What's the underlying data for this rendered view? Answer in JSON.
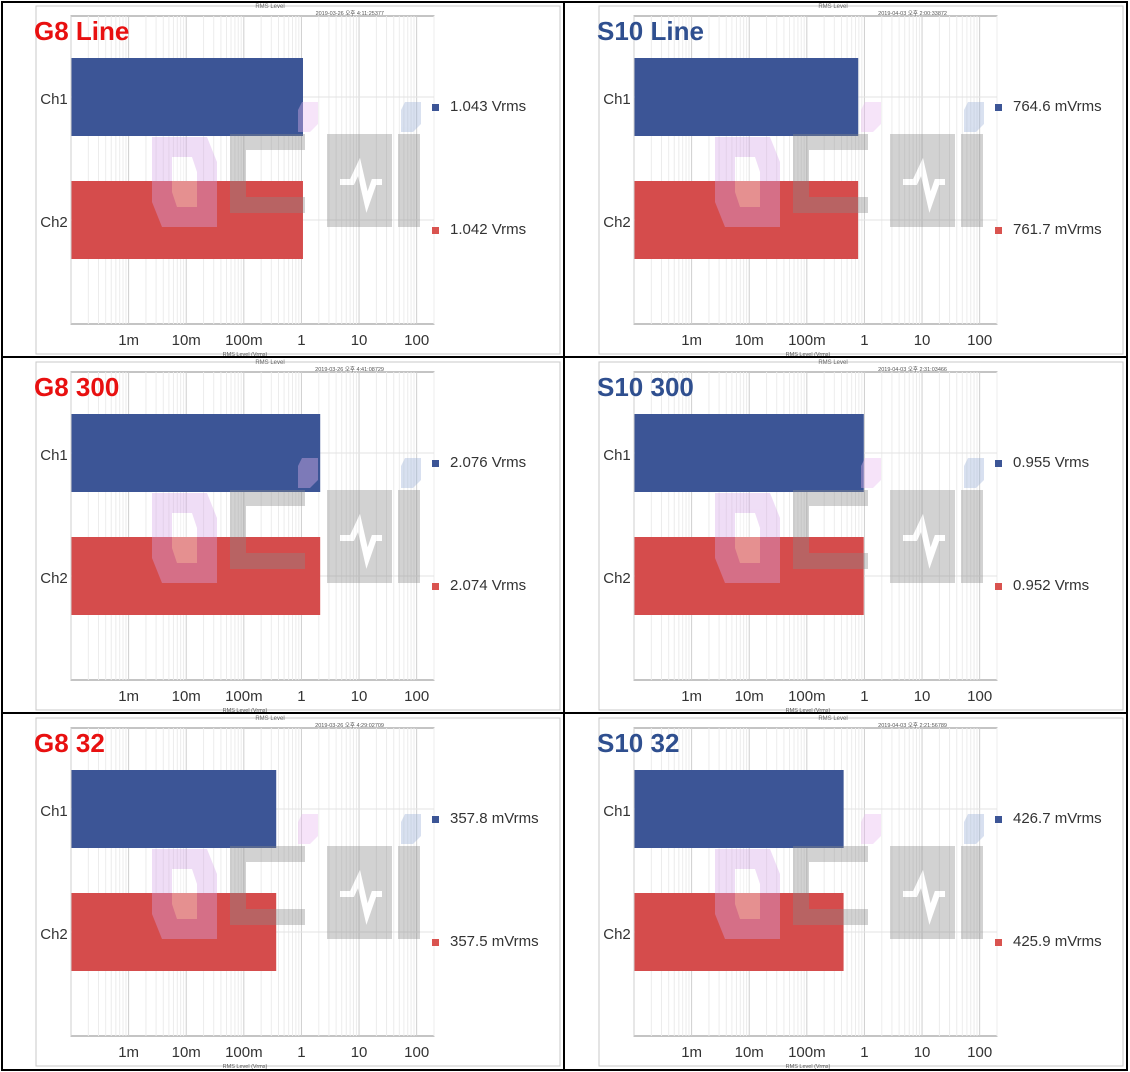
{
  "colors": {
    "ch1_bar": "#3c5596",
    "ch2_bar": "#d54c4c",
    "ch1_marker": "#3c5596",
    "ch2_marker": "#d9534f",
    "title_red": "#e81010",
    "title_blue": "#2f4f8f",
    "grid": "#d9d9d9",
    "axis": "#888888"
  },
  "chart_data": [
    {
      "type": "bar",
      "orientation": "horizontal",
      "title": "G8 Line",
      "title_color": "red",
      "header_title": "RMS Level",
      "timestamp": "2019-03-26 오후 4:11:25377",
      "xlabel": "RMS Level (Vrms)",
      "xscale": "log",
      "xlim": [
        0.0001,
        200
      ],
      "xticks": [
        "1m",
        "10m",
        "100m",
        "1",
        "10",
        "100"
      ],
      "categories": [
        "Ch1",
        "Ch2"
      ],
      "values": [
        1.043,
        1.042
      ],
      "labels": [
        "1.043 Vrms",
        "1.042 Vrms"
      ]
    },
    {
      "type": "bar",
      "orientation": "horizontal",
      "title": "S10 Line",
      "title_color": "blue",
      "header_title": "RMS Level",
      "timestamp": "2019-04-03 오후 2:00:33872",
      "xlabel": "RMS Level (Vrms)",
      "xscale": "log",
      "xlim": [
        0.0001,
        200
      ],
      "xticks": [
        "1m",
        "10m",
        "100m",
        "1",
        "10",
        "100"
      ],
      "categories": [
        "Ch1",
        "Ch2"
      ],
      "values": [
        0.7646,
        0.7617
      ],
      "labels": [
        "764.6  mVrms",
        "761.7  mVrms"
      ]
    },
    {
      "type": "bar",
      "orientation": "horizontal",
      "title": "G8 300",
      "title_color": "red",
      "header_title": "RMS Level",
      "timestamp": "2019-03-26 오후 4:41:08729",
      "xlabel": "RMS Level (Vrms)",
      "xscale": "log",
      "xlim": [
        0.0001,
        200
      ],
      "xticks": [
        "1m",
        "10m",
        "100m",
        "1",
        "10",
        "100"
      ],
      "categories": [
        "Ch1",
        "Ch2"
      ],
      "values": [
        2.076,
        2.074
      ],
      "labels": [
        "2.076  Vrms",
        "2.074  Vrms"
      ]
    },
    {
      "type": "bar",
      "orientation": "horizontal",
      "title": "S10 300",
      "title_color": "blue",
      "header_title": "RMS Level",
      "timestamp": "2019-04-03 오후 2:31:03466",
      "xlabel": "RMS Level (Vrms)",
      "xscale": "log",
      "xlim": [
        0.0001,
        200
      ],
      "xticks": [
        "1m",
        "10m",
        "100m",
        "1",
        "10",
        "100"
      ],
      "categories": [
        "Ch1",
        "Ch2"
      ],
      "values": [
        0.955,
        0.952
      ],
      "labels": [
        "0.955  Vrms",
        "0.952  Vrms"
      ]
    },
    {
      "type": "bar",
      "orientation": "horizontal",
      "title": "G8 32",
      "title_color": "red",
      "header_title": "RMS Level",
      "timestamp": "2019-03-26 오후 4:29:02709",
      "xlabel": "RMS Level (Vrms)",
      "xscale": "log",
      "xlim": [
        0.0001,
        200
      ],
      "xticks": [
        "1m",
        "10m",
        "100m",
        "1",
        "10",
        "100"
      ],
      "categories": [
        "Ch1",
        "Ch2"
      ],
      "values": [
        0.3578,
        0.3575
      ],
      "labels": [
        "357.8  mVrms",
        "357.5  mVrms"
      ]
    },
    {
      "type": "bar",
      "orientation": "horizontal",
      "title": "S10 32",
      "title_color": "blue",
      "header_title": "RMS Level",
      "timestamp": "2019-04-03 오후 2:21:56789",
      "xlabel": "RMS Level (Vrms)",
      "xscale": "log",
      "xlim": [
        0.0001,
        200
      ],
      "xticks": [
        "1m",
        "10m",
        "100m",
        "1",
        "10",
        "100"
      ],
      "categories": [
        "Ch1",
        "Ch2"
      ],
      "values": [
        0.4267,
        0.4259
      ],
      "labels": [
        "426.7  mVrms",
        "425.9  mVrms"
      ]
    }
  ]
}
